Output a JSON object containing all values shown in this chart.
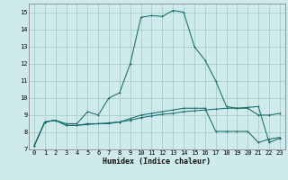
{
  "xlabel": "Humidex (Indice chaleur)",
  "bg_color": "#ceeaea",
  "grid_color": "#a8cccc",
  "line_color": "#1a6b6b",
  "xlim": [
    -0.5,
    23.5
  ],
  "ylim": [
    7,
    15.5
  ],
  "xticks": [
    0,
    1,
    2,
    3,
    4,
    5,
    6,
    7,
    8,
    9,
    10,
    11,
    12,
    13,
    14,
    15,
    16,
    17,
    18,
    19,
    20,
    21,
    22,
    23
  ],
  "yticks": [
    7,
    8,
    9,
    10,
    11,
    12,
    13,
    14,
    15
  ],
  "series1_x": [
    0,
    1,
    2,
    3,
    4,
    5,
    6,
    7,
    8,
    9,
    10,
    11,
    12,
    13,
    14,
    15,
    16,
    17,
    18,
    19,
    20,
    21,
    22,
    23
  ],
  "series1_y": [
    7.2,
    8.6,
    8.7,
    8.5,
    8.5,
    9.2,
    9.0,
    10.0,
    10.3,
    12.0,
    14.7,
    14.8,
    14.75,
    15.1,
    15.0,
    13.0,
    12.2,
    11.0,
    9.5,
    9.4,
    9.4,
    9.0,
    9.0,
    9.1
  ],
  "series2_x": [
    0,
    1,
    2,
    3,
    4,
    5,
    6,
    7,
    8,
    9,
    10,
    11,
    12,
    13,
    14,
    15,
    16,
    17,
    18,
    19,
    20,
    21,
    22,
    23
  ],
  "series2_y": [
    7.2,
    8.6,
    8.7,
    8.4,
    8.4,
    8.5,
    8.5,
    8.55,
    8.6,
    8.8,
    9.0,
    9.1,
    9.2,
    9.3,
    9.4,
    9.4,
    9.4,
    8.05,
    8.05,
    8.05,
    8.05,
    7.4,
    7.6,
    7.7
  ],
  "series3_x": [
    0,
    1,
    2,
    3,
    4,
    5,
    6,
    7,
    8,
    9,
    10,
    11,
    12,
    13,
    14,
    15,
    16,
    17,
    18,
    19,
    20,
    21,
    22,
    23
  ],
  "series3_y": [
    7.2,
    8.6,
    8.7,
    8.4,
    8.4,
    8.45,
    8.5,
    8.5,
    8.6,
    8.7,
    8.85,
    8.95,
    9.05,
    9.1,
    9.2,
    9.25,
    9.3,
    9.35,
    9.4,
    9.4,
    9.45,
    9.5,
    7.4,
    7.65
  ]
}
